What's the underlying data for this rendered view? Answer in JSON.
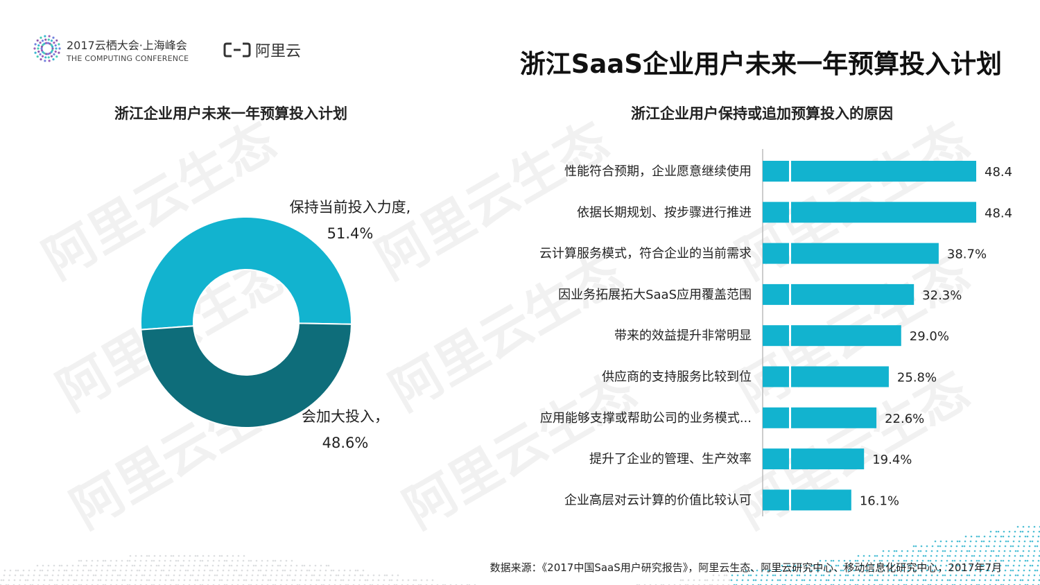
{
  "header": {
    "conference_title": "2017云栖大会·上海峰会",
    "conference_subtitle": "THE COMPUTING CONFERENCE",
    "brand_name": "阿里云",
    "page_title": "浙江SaaS企业用户未来一年预算投入计划"
  },
  "watermark_text": "阿里云生态",
  "colors": {
    "light_teal": "#12b3cf",
    "dark_teal": "#0e6d7a",
    "bar": "#12b3cf"
  },
  "chart_data": [
    {
      "type": "pie",
      "title": "浙江企业用户未来一年预算投入计划",
      "donut": true,
      "slices": [
        {
          "label_line1": "保持当前投入力度,",
          "label_line2": "51.4%",
          "value": 51.4,
          "color": "#12b3cf"
        },
        {
          "label_line1": "会加大投入，",
          "label_line2": "48.6%",
          "value": 48.6,
          "color": "#0e6d7a"
        }
      ]
    },
    {
      "type": "bar",
      "orientation": "horizontal",
      "title": "浙江企业用户保持或追加预算投入的原因",
      "categories": [
        "性能符合预期，企业愿意继续使用",
        "依据长期规划、按步骤进行推进",
        "云计算服务模式，符合企业的当前需求",
        "因业务拓展拓大SaaS应用覆盖范围",
        "带来的效益提升非常明显",
        "供应商的支持服务比较到位",
        "应用能够支撑或帮助公司的业务模式...",
        "提升了企业的管理、生产效率",
        "企业高层对云计算的价值比较认可"
      ],
      "values": [
        48.4,
        48.4,
        38.7,
        32.3,
        29.0,
        25.8,
        22.6,
        19.4,
        16.1
      ],
      "value_labels": [
        "48.4%",
        "48.4%",
        "38.7%",
        "32.3%",
        "29.0%",
        "25.8%",
        "22.6%",
        "19.4%",
        "16.1%"
      ],
      "xlim": [
        0,
        55
      ],
      "grid": false
    }
  ],
  "footer": {
    "source": "数据来源：《2017中国SaaS用户研究报告》，阿里云生态、阿里云研究中心、移动信息化研究中心，2017年7月"
  }
}
